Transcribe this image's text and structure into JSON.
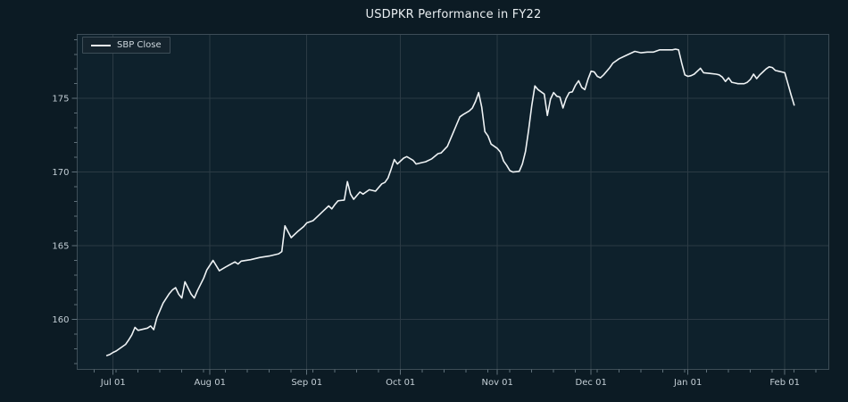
{
  "figure": {
    "title": "USDPKR Performance in FY22",
    "legend": {
      "position": "upper left",
      "entries": [
        {
          "label": "SBP Close"
        }
      ]
    }
  },
  "colors": {
    "figure_bg": "#0c1b24",
    "axes_bg": "#0e212c",
    "grid": "#2b3a44",
    "spine": "#3d4d57",
    "tick": "#5f707a",
    "tick_label": "#c3ced5",
    "title": "#e9eef1",
    "line": "#eef2f4",
    "legend_bg": "#15242e",
    "legend_border": "#3d4d57",
    "legend_text": "#ccd6dc"
  },
  "chart_data": {
    "type": "line",
    "title": "USDPKR Performance in FY22",
    "xlabel": "",
    "ylabel": "",
    "grid": true,
    "legend_position": "upper left",
    "x_unit": "days since Jul 01 (2021)",
    "xlim": [
      -11.5,
      229.1
    ],
    "ylim": [
      156.6,
      179.35
    ],
    "x_ticks_major": [
      {
        "day": 0,
        "label": "Jul 01"
      },
      {
        "day": 31,
        "label": "Aug 01"
      },
      {
        "day": 62,
        "label": "Sep 01"
      },
      {
        "day": 92,
        "label": "Oct 01"
      },
      {
        "day": 123,
        "label": "Nov 01"
      },
      {
        "day": 153,
        "label": "Dec 01"
      },
      {
        "day": 184,
        "label": "Jan 01"
      },
      {
        "day": 215,
        "label": "Feb 01"
      }
    ],
    "x_ticks_minor_days": [
      -6,
      1,
      8,
      15,
      22,
      29,
      36,
      43,
      50,
      57,
      64,
      71,
      78,
      85,
      92,
      99,
      106,
      113,
      120,
      127,
      134,
      141,
      148,
      155,
      162,
      169,
      176,
      183,
      190,
      197,
      204,
      211,
      218,
      225
    ],
    "y_ticks_major": [
      {
        "value": 160,
        "label": "160"
      },
      {
        "value": 165,
        "label": "165"
      },
      {
        "value": 170,
        "label": "170"
      },
      {
        "value": 175,
        "label": "175"
      }
    ],
    "y_ticks_minor": [
      157,
      158,
      159,
      161,
      162,
      163,
      164,
      166,
      167,
      168,
      169,
      171,
      172,
      173,
      174,
      176,
      177,
      178,
      179
    ],
    "series": [
      {
        "name": "SBP Close",
        "points": [
          [
            -2,
            157.54
          ],
          [
            -1,
            157.62
          ],
          [
            0,
            157.75
          ],
          [
            1,
            157.85
          ],
          [
            4,
            158.3
          ],
          [
            5,
            158.6
          ],
          [
            6,
            158.95
          ],
          [
            7,
            159.45
          ],
          [
            8,
            159.25
          ],
          [
            11,
            159.4
          ],
          [
            12,
            159.55
          ],
          [
            13,
            159.3
          ],
          [
            14,
            160.1
          ],
          [
            15,
            160.6
          ],
          [
            16,
            161.1
          ],
          [
            18,
            161.75
          ],
          [
            19,
            162.0
          ],
          [
            20,
            162.15
          ],
          [
            21,
            161.7
          ],
          [
            22,
            161.45
          ],
          [
            23,
            162.55
          ],
          [
            25,
            161.7
          ],
          [
            26,
            161.45
          ],
          [
            27,
            161.95
          ],
          [
            29,
            162.8
          ],
          [
            30,
            163.35
          ],
          [
            32,
            164.0
          ],
          [
            34,
            163.3
          ],
          [
            36,
            163.55
          ],
          [
            39,
            163.9
          ],
          [
            40,
            163.75
          ],
          [
            41,
            163.95
          ],
          [
            44,
            164.05
          ],
          [
            47,
            164.2
          ],
          [
            50,
            164.3
          ],
          [
            53,
            164.45
          ],
          [
            54,
            164.6
          ],
          [
            55,
            166.35
          ],
          [
            57,
            165.55
          ],
          [
            59,
            165.95
          ],
          [
            61,
            166.3
          ],
          [
            62,
            166.55
          ],
          [
            64,
            166.7
          ],
          [
            66,
            167.1
          ],
          [
            67,
            167.3
          ],
          [
            69,
            167.7
          ],
          [
            70,
            167.5
          ],
          [
            71,
            167.8
          ],
          [
            72,
            168.05
          ],
          [
            74,
            168.1
          ],
          [
            75,
            169.35
          ],
          [
            76,
            168.5
          ],
          [
            77,
            168.15
          ],
          [
            79,
            168.65
          ],
          [
            80,
            168.5
          ],
          [
            82,
            168.8
          ],
          [
            84,
            168.7
          ],
          [
            86,
            169.2
          ],
          [
            87,
            169.3
          ],
          [
            88,
            169.6
          ],
          [
            89,
            170.2
          ],
          [
            90,
            170.85
          ],
          [
            91,
            170.55
          ],
          [
            93,
            170.95
          ],
          [
            94,
            171.05
          ],
          [
            96,
            170.8
          ],
          [
            97,
            170.55
          ],
          [
            99,
            170.65
          ],
          [
            100,
            170.7
          ],
          [
            102,
            170.9
          ],
          [
            104,
            171.25
          ],
          [
            105,
            171.3
          ],
          [
            107,
            171.75
          ],
          [
            109,
            172.75
          ],
          [
            110,
            173.25
          ],
          [
            111,
            173.75
          ],
          [
            112,
            173.9
          ],
          [
            114,
            174.15
          ],
          [
            115,
            174.35
          ],
          [
            116,
            174.8
          ],
          [
            117,
            175.4
          ],
          [
            118,
            174.4
          ],
          [
            119,
            172.75
          ],
          [
            120,
            172.45
          ],
          [
            121,
            171.9
          ],
          [
            123,
            171.6
          ],
          [
            124,
            171.35
          ],
          [
            125,
            170.75
          ],
          [
            126,
            170.45
          ],
          [
            127,
            170.1
          ],
          [
            128,
            170.0
          ],
          [
            130,
            170.05
          ],
          [
            131,
            170.55
          ],
          [
            132,
            171.4
          ],
          [
            133,
            172.85
          ],
          [
            134,
            174.5
          ],
          [
            135,
            175.85
          ],
          [
            136,
            175.6
          ],
          [
            137,
            175.45
          ],
          [
            138,
            175.3
          ],
          [
            139,
            173.85
          ],
          [
            140,
            174.95
          ],
          [
            141,
            175.4
          ],
          [
            142,
            175.15
          ],
          [
            143,
            175.1
          ],
          [
            144,
            174.35
          ],
          [
            145,
            175.0
          ],
          [
            146,
            175.4
          ],
          [
            147,
            175.45
          ],
          [
            148,
            175.9
          ],
          [
            149,
            176.2
          ],
          [
            150,
            175.75
          ],
          [
            151,
            175.6
          ],
          [
            152,
            176.3
          ],
          [
            153,
            176.85
          ],
          [
            154,
            176.8
          ],
          [
            155,
            176.5
          ],
          [
            156,
            176.4
          ],
          [
            157,
            176.6
          ],
          [
            159,
            177.1
          ],
          [
            160,
            177.4
          ],
          [
            162,
            177.7
          ],
          [
            164,
            177.9
          ],
          [
            166,
            178.1
          ],
          [
            167,
            178.2
          ],
          [
            169,
            178.1
          ],
          [
            171,
            178.15
          ],
          [
            173,
            178.15
          ],
          [
            175,
            178.3
          ],
          [
            177,
            178.3
          ],
          [
            179,
            178.3
          ],
          [
            180,
            178.35
          ],
          [
            181,
            178.3
          ],
          [
            182,
            177.4
          ],
          [
            183,
            176.6
          ],
          [
            184,
            176.5
          ],
          [
            185,
            176.55
          ],
          [
            186,
            176.65
          ],
          [
            188,
            177.05
          ],
          [
            189,
            176.75
          ],
          [
            191,
            176.7
          ],
          [
            193,
            176.65
          ],
          [
            194,
            176.6
          ],
          [
            195,
            176.45
          ],
          [
            196,
            176.15
          ],
          [
            197,
            176.4
          ],
          [
            198,
            176.1
          ],
          [
            199,
            176.05
          ],
          [
            200,
            176.0
          ],
          [
            202,
            176.0
          ],
          [
            203,
            176.1
          ],
          [
            204,
            176.3
          ],
          [
            205,
            176.65
          ],
          [
            206,
            176.35
          ],
          [
            207,
            176.6
          ],
          [
            208,
            176.8
          ],
          [
            209,
            177.0
          ],
          [
            210,
            177.15
          ],
          [
            211,
            177.1
          ],
          [
            212,
            176.9
          ],
          [
            213,
            176.85
          ],
          [
            214,
            176.8
          ],
          [
            215,
            176.75
          ],
          [
            216,
            176.0
          ],
          [
            217,
            175.25
          ],
          [
            218,
            174.55
          ]
        ]
      }
    ]
  }
}
